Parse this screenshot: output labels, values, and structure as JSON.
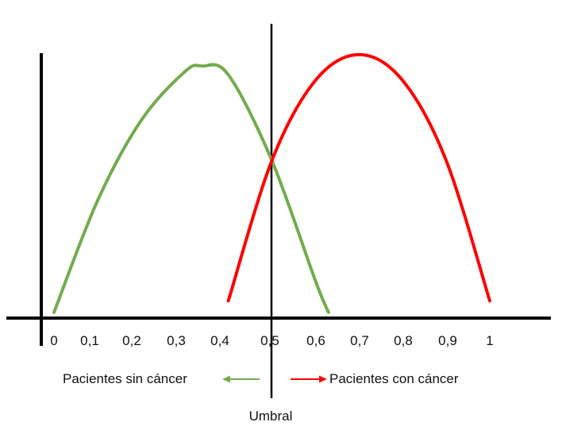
{
  "diagram": {
    "x_ticks": [
      "0",
      "0,1",
      "0,2",
      "0,3",
      "0,4",
      "0,5",
      "0,6",
      "0,7",
      "0,8",
      "0,9",
      "1"
    ],
    "threshold_label": "Umbral",
    "legend_left": "Pacientes sin cáncer",
    "legend_right": "Pacientes con cáncer",
    "colors": {
      "healthy_curve": "#72ac4d",
      "cancer_curve": "#ff0000",
      "axis": "#000000"
    }
  },
  "chart_data": {
    "type": "line",
    "series": [
      {
        "name": "Pacientes sin cáncer",
        "color": "#72ac4d",
        "x": [
          0.0,
          0.1,
          0.2,
          0.3,
          0.34,
          0.4,
          0.5,
          0.6,
          0.63
        ],
        "y": [
          0.02,
          0.41,
          0.69,
          0.86,
          0.88,
          0.85,
          0.55,
          0.13,
          0.02
        ]
      },
      {
        "name": "Pacientes con cáncer",
        "color": "#ff0000",
        "x": [
          0.4,
          0.5,
          0.6,
          0.7,
          0.8,
          0.9,
          1.0
        ],
        "y": [
          0.06,
          0.55,
          0.83,
          0.92,
          0.83,
          0.55,
          0.06
        ]
      }
    ],
    "threshold_x": 0.5,
    "xlim": [
      0,
      1
    ],
    "ylim": [
      0,
      1
    ],
    "grid": false
  }
}
